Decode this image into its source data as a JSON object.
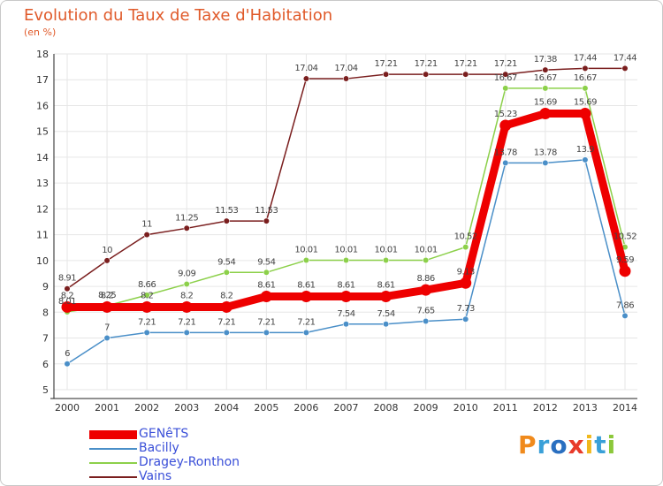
{
  "header": {
    "title": "Evolution du Taux de Taxe d'Habitation",
    "unit": "(en %)"
  },
  "chart_data": {
    "type": "line",
    "x": [
      "2000",
      "2001",
      "2002",
      "2003",
      "2004",
      "2005",
      "2006",
      "2007",
      "2008",
      "2009",
      "2010",
      "2011",
      "2012",
      "2013",
      "2014"
    ],
    "ylim": [
      5,
      18
    ],
    "yticks": [
      "5",
      "6",
      "7",
      "8",
      "9",
      "10",
      "11",
      "12",
      "13",
      "14",
      "15",
      "16",
      "17",
      "18"
    ],
    "grid": true,
    "legend_position": "bottom-left",
    "series": [
      {
        "name": "Vains",
        "color": "#7a1e1e",
        "values": [
          8.91,
          10,
          11,
          11.25,
          11.53,
          11.53,
          17.04,
          17.04,
          17.21,
          17.21,
          17.21,
          17.21,
          17.38,
          17.44,
          17.44
        ],
        "labels": [
          "8.91",
          "10",
          "11",
          "11.25",
          "11.53",
          "11.53",
          "17.04",
          "17.04",
          "17.21",
          "17.21",
          "17.21",
          "17.21",
          "17.38",
          "17.44",
          "17.44"
        ]
      },
      {
        "name": "Dragey-Ronthon",
        "color": "#8cd04a",
        "values": [
          8.01,
          8.25,
          8.66,
          9.09,
          9.54,
          9.54,
          10.01,
          10.01,
          10.01,
          10.01,
          10.52,
          16.67,
          16.67,
          16.67,
          10.52
        ],
        "labels": [
          "8.01",
          "8.25",
          "8.66",
          "9.09",
          "9.54",
          "9.54",
          "10.01",
          "10.01",
          "10.01",
          "10.01",
          "10.52",
          "16.67",
          "16.67",
          "16.67",
          "10.52"
        ]
      },
      {
        "name": "Bacilly",
        "color": "#4a8fc8",
        "values": [
          6,
          7,
          7.21,
          7.21,
          7.21,
          7.21,
          7.21,
          7.54,
          7.54,
          7.65,
          7.73,
          13.78,
          13.78,
          13.9,
          7.86
        ],
        "labels": [
          "6",
          "7",
          "7.21",
          "7.21",
          "7.21",
          "7.21",
          "7.21",
          "7.54",
          "7.54",
          "7.65",
          "7.73",
          "13.78",
          "13.78",
          "13.9",
          "7.86"
        ]
      },
      {
        "name": "GENêTS",
        "color": "#ee0000",
        "values": [
          8.2,
          8.2,
          8.2,
          8.2,
          8.2,
          8.61,
          8.61,
          8.61,
          8.61,
          8.86,
          9.13,
          15.23,
          15.69,
          15.69,
          9.59
        ],
        "labels": [
          "8.2",
          "8.2",
          "8.2",
          "8.2",
          "8.2",
          "8.61",
          "8.61",
          "8.61",
          "8.61",
          "8.86",
          "9.13",
          "15.23",
          "15.69",
          "15.69",
          "9.59"
        ]
      }
    ]
  },
  "legend": {
    "items": [
      {
        "label": "GENêTS",
        "color": "#ee0000",
        "weight": "thick"
      },
      {
        "label": "Bacilly",
        "color": "#4a8fc8",
        "weight": "thin"
      },
      {
        "label": "Dragey-Ronthon",
        "color": "#8cd04a",
        "weight": "thin"
      },
      {
        "label": "Vains",
        "color": "#7a1e1e",
        "weight": "thin"
      }
    ]
  },
  "logo": {
    "text": "Proxiti",
    "colors": [
      "#f08a1c",
      "#3aa0d8",
      "#2a6fc0",
      "#e83a2a",
      "#f0b81c",
      "#3aa0d8",
      "#8cc83a"
    ]
  }
}
